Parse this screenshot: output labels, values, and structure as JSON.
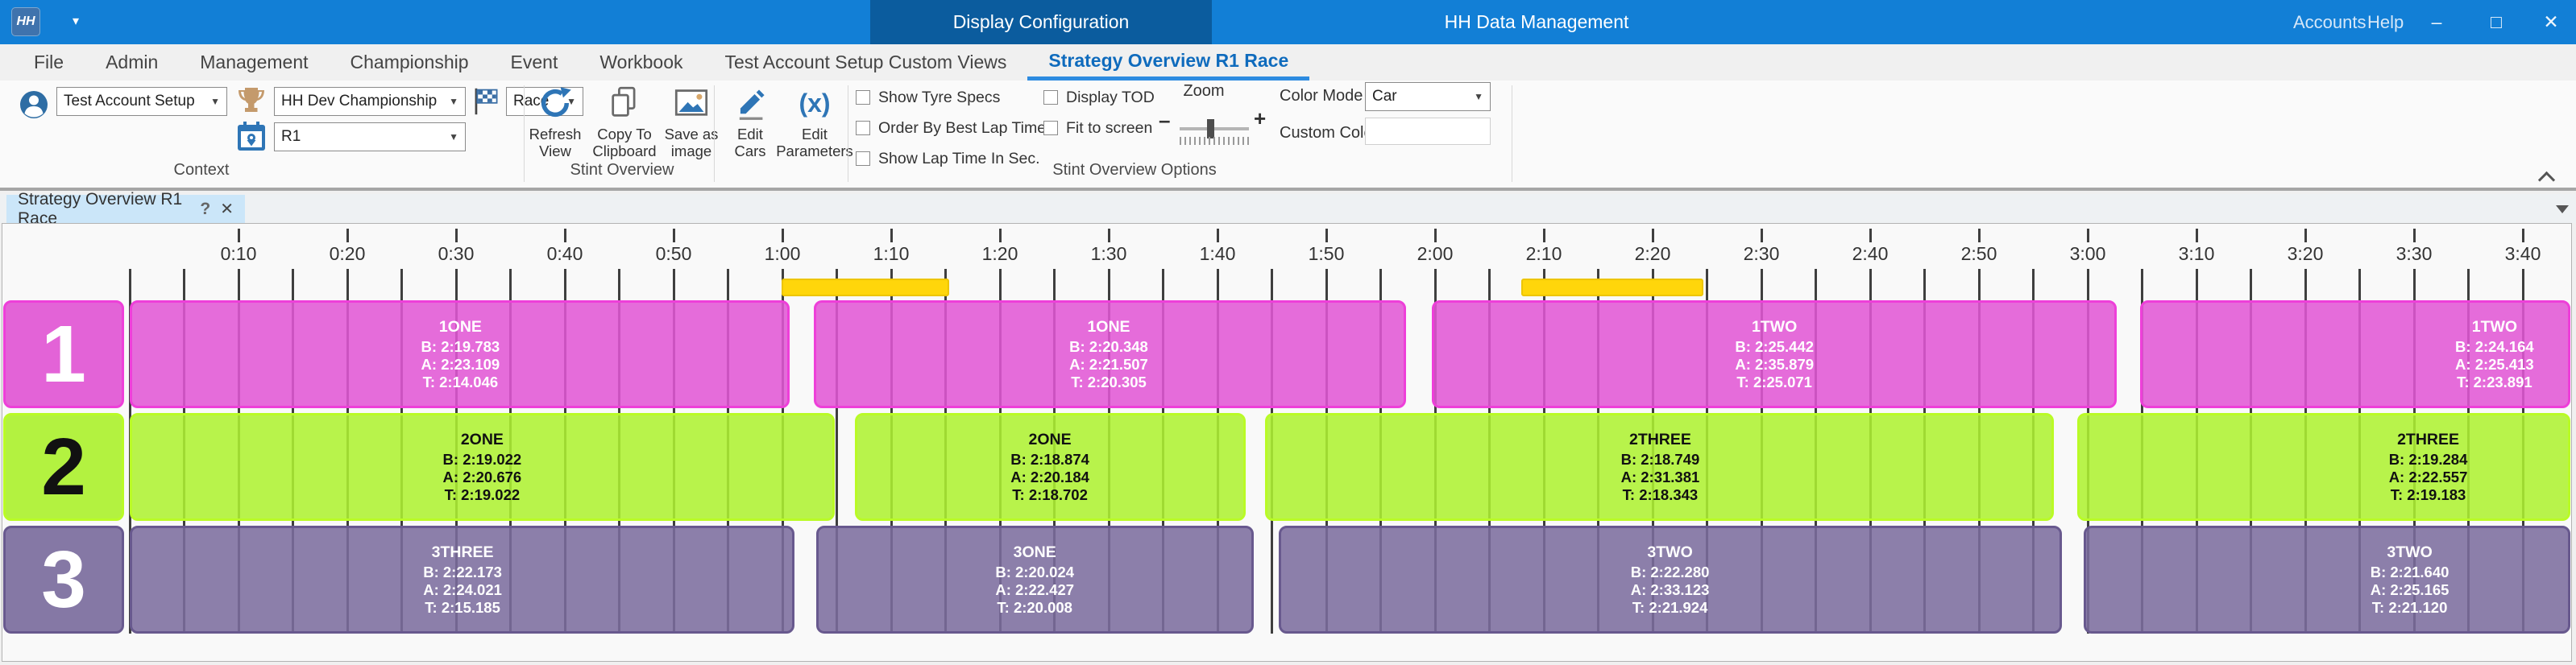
{
  "titlebar": {
    "app_icon_text": "HH",
    "tabs": [
      {
        "label": "Display Configuration",
        "active": true
      },
      {
        "label": "HH Data Management",
        "active": false
      }
    ],
    "links": [
      {
        "label": "Accounts"
      },
      {
        "label": "Help"
      }
    ],
    "window_controls": {
      "minimize": "–",
      "maximize": "□",
      "close": "✕"
    }
  },
  "menubar": {
    "items": [
      {
        "label": "File",
        "active": false
      },
      {
        "label": "Admin",
        "active": false
      },
      {
        "label": "Management",
        "active": false
      },
      {
        "label": "Championship",
        "active": false
      },
      {
        "label": "Event",
        "active": false
      },
      {
        "label": "Workbook",
        "active": false
      },
      {
        "label": "Test Account Setup Custom Views",
        "active": false
      },
      {
        "label": "Strategy Overview R1 Race",
        "active": true
      }
    ]
  },
  "ribbon": {
    "context": {
      "group_label": "Context",
      "account": {
        "value": "Test Account Setup",
        "icon": "person-icon"
      },
      "championship": {
        "value": "HH Dev Championship",
        "icon": "trophy-icon"
      },
      "session_type": {
        "value": "Race",
        "icon": "checkered-flag-icon"
      },
      "event": {
        "value": "R1",
        "icon": "calendar-icon"
      }
    },
    "stint_overview": {
      "group_label": "Stint Overview",
      "buttons": [
        {
          "label": "Refresh View",
          "icon": "refresh-icon"
        },
        {
          "label": "Copy To Clipboard",
          "icon": "copy-icon"
        },
        {
          "label": "Save as image",
          "icon": "image-icon"
        },
        {
          "label": "Edit Cars",
          "icon": "pencil-icon"
        },
        {
          "label": "Edit Parameters",
          "icon": "parameters-icon"
        }
      ]
    },
    "options": {
      "group_label": "Stint Overview Options",
      "checkboxes": [
        {
          "label": "Show Tyre Specs",
          "checked": false
        },
        {
          "label": "Order By Best Lap Time",
          "checked": false
        },
        {
          "label": "Show Lap Time In Sec.",
          "checked": false
        },
        {
          "label": "Display TOD",
          "checked": false
        },
        {
          "label": "Fit to screen",
          "checked": false
        }
      ],
      "zoom": {
        "label": "Zoom",
        "minus": "–",
        "plus": "+",
        "value_pct": 42
      },
      "color_mode": {
        "label": "Color Mode",
        "value": "Car"
      },
      "custom_color": {
        "label": "Custom Color",
        "value": ""
      }
    }
  },
  "doc_tab": {
    "label": "Strategy Overview R1 Race",
    "help_glyph": "?",
    "close_glyph": "✕"
  },
  "chart_data": {
    "type": "timeline",
    "x_unit": "elapsed race time (h:mm)",
    "x_range_min": [
      0,
      225
    ],
    "grid_interval_min": 5,
    "ticks": [
      {
        "min": 10,
        "label": "0:10"
      },
      {
        "min": 20,
        "label": "0:20"
      },
      {
        "min": 30,
        "label": "0:30"
      },
      {
        "min": 40,
        "label": "0:40"
      },
      {
        "min": 50,
        "label": "0:50"
      },
      {
        "min": 60,
        "label": "1:00"
      },
      {
        "min": 70,
        "label": "1:10"
      },
      {
        "min": 80,
        "label": "1:20"
      },
      {
        "min": 90,
        "label": "1:30"
      },
      {
        "min": 100,
        "label": "1:40"
      },
      {
        "min": 110,
        "label": "1:50"
      },
      {
        "min": 120,
        "label": "2:00"
      },
      {
        "min": 130,
        "label": "2:10"
      },
      {
        "min": 140,
        "label": "2:20"
      },
      {
        "min": 150,
        "label": "2:30"
      },
      {
        "min": 160,
        "label": "2:40"
      },
      {
        "min": 170,
        "label": "2:50"
      },
      {
        "min": 180,
        "label": "3:00"
      },
      {
        "min": 190,
        "label": "3:10"
      },
      {
        "min": 200,
        "label": "3:20"
      },
      {
        "min": 210,
        "label": "3:30"
      },
      {
        "min": 220,
        "label": "3:40"
      }
    ],
    "caution_color": "#ffd60b",
    "caution_border": "#edc500",
    "caution_periods": [
      {
        "start_min": 59.9,
        "end_min": 75.3
      },
      {
        "start_min": 127.9,
        "end_min": 144.7
      }
    ],
    "rows": [
      {
        "car_number": "1",
        "fill": "#e156d4",
        "border": "#ee3fd9",
        "text_color": "#ffffff",
        "stints": [
          {
            "name": "1ONE",
            "best": "B: 2:19.783",
            "avg": "A: 2:23.109",
            "theoretical": "T: 2:14.046",
            "start_min": 0,
            "end_min": 60.7,
            "label_center_min": 30.4
          },
          {
            "name": "1ONE",
            "best": "B: 2:20.348",
            "avg": "A: 2:21.507",
            "theoretical": "T: 2:20.305",
            "start_min": 62.9,
            "end_min": 117.3,
            "label_center_min": 90.0
          },
          {
            "name": "1TWO",
            "best": "B: 2:25.442",
            "avg": "A: 2:35.879",
            "theoretical": "T: 2:25.071",
            "start_min": 119.7,
            "end_min": 182.7,
            "label_center_min": 151.2
          },
          {
            "name": "1TWO",
            "best": "B: 2:24.164",
            "avg": "A: 2:25.413",
            "theoretical": "T: 2:23.891",
            "start_min": 184.8,
            "end_min": 224.4,
            "label_center_min": 217.4
          }
        ]
      },
      {
        "car_number": "2",
        "fill": "#adf130",
        "border": "#b9fb26",
        "text_color": "#111111",
        "stints": [
          {
            "name": "2ONE",
            "best": "B: 2:19.022",
            "avg": "A: 2:20.676",
            "theoretical": "T: 2:19.022",
            "start_min": 0,
            "end_min": 64.8,
            "label_center_min": 32.4
          },
          {
            "name": "2ONE",
            "best": "B: 2:18.874",
            "avg": "A: 2:20.184",
            "theoretical": "T: 2:18.702",
            "start_min": 66.7,
            "end_min": 102.6,
            "label_center_min": 84.6
          },
          {
            "name": "2THREE",
            "best": "B: 2:18.749",
            "avg": "A: 2:31.381",
            "theoretical": "T: 2:18.343",
            "start_min": 104.4,
            "end_min": 176.9,
            "label_center_min": 140.7
          },
          {
            "name": "2THREE",
            "best": "B: 2:19.284",
            "avg": "A: 2:22.557",
            "theoretical": "T: 2:19.183",
            "start_min": 179.0,
            "end_min": 224.4,
            "label_center_min": 211.3
          }
        ]
      },
      {
        "car_number": "3",
        "fill": "#7b6c9d",
        "border": "#68598e",
        "text_color": "#ffffff",
        "stints": [
          {
            "name": "3THREE",
            "best": "B: 2:22.173",
            "avg": "A: 2:24.021",
            "theoretical": "T: 2:15.185",
            "start_min": 0,
            "end_min": 61.1,
            "label_center_min": 30.6
          },
          {
            "name": "3ONE",
            "best": "B: 2:20.024",
            "avg": "A: 2:22.427",
            "theoretical": "T: 2:20.008",
            "start_min": 63.1,
            "end_min": 103.3,
            "label_center_min": 83.2
          },
          {
            "name": "3TWO",
            "best": "B: 2:22.280",
            "avg": "A: 2:33.123",
            "theoretical": "T: 2:21.924",
            "start_min": 105.6,
            "end_min": 177.6,
            "label_center_min": 141.6
          },
          {
            "name": "3TWO",
            "best": "B: 2:21.640",
            "avg": "A: 2:25.165",
            "theoretical": "T: 2:21.120",
            "start_min": 179.6,
            "end_min": 224.4,
            "label_center_min": 209.6
          }
        ]
      }
    ]
  }
}
